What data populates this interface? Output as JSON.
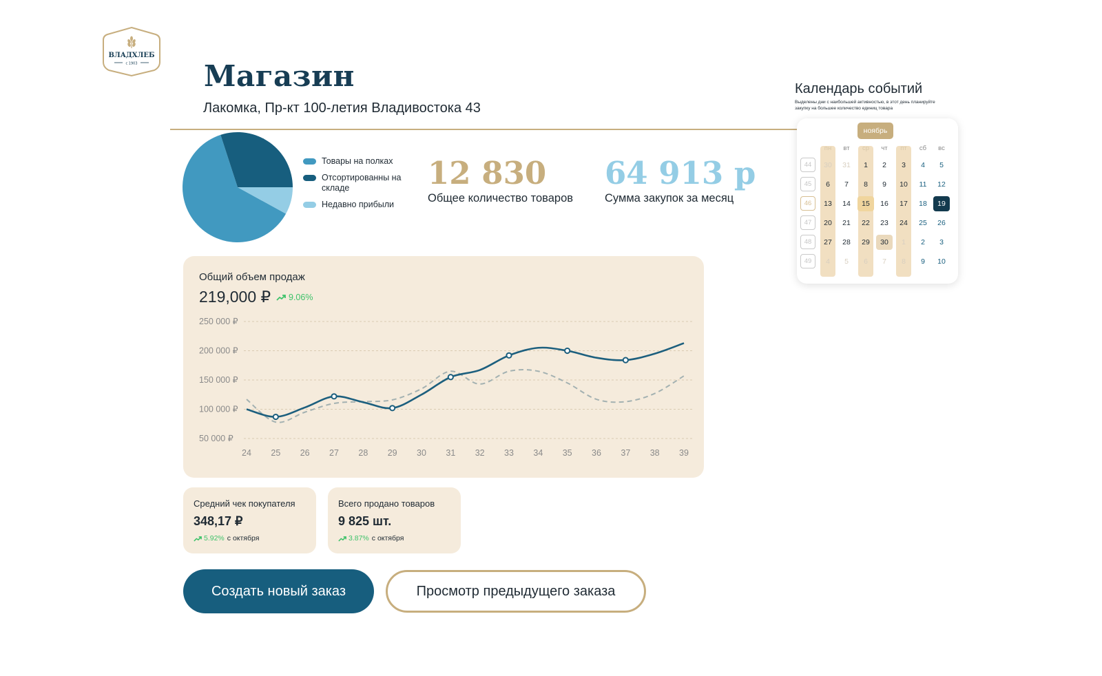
{
  "brand": {
    "logo_text": "ВЛАДХЛЕБ",
    "logo_since": "с 1903"
  },
  "header": {
    "title": "Магазин",
    "subtitle": "Лакомка, Пр-кт 100-летия Владивостока 43"
  },
  "inventory": {
    "legend": [
      {
        "label": "Товары на полках",
        "color": "#4199c0"
      },
      {
        "label": "Отсортированны на складе",
        "color": "#175e7e"
      },
      {
        "label": "Недавно прибыли",
        "color": "#94cde5"
      }
    ],
    "pie_shares": [
      0.62,
      0.3,
      0.08
    ]
  },
  "stats": {
    "total_items": {
      "value": "12 830",
      "label": "Общее количество товаров",
      "color": "#c7ae7e"
    },
    "monthly_purchases": {
      "value": "64 913 р",
      "label": "Сумма закупок за месяц",
      "color": "#94cde5"
    }
  },
  "sales": {
    "title": "Общий объем продаж",
    "value": "219,000 ₽",
    "trend": "9.06%"
  },
  "chart_data": {
    "type": "line",
    "x": [
      24,
      25,
      26,
      27,
      28,
      29,
      30,
      31,
      32,
      33,
      34,
      35,
      36,
      37,
      38,
      39
    ],
    "x_ticks": [
      "24",
      "25",
      "26",
      "27",
      "28",
      "29",
      "30",
      "31",
      "32",
      "33",
      "34",
      "35",
      "36",
      "37",
      "38",
      "39"
    ],
    "y_ticks": [
      "250 000 ₽",
      "200 000 ₽",
      "150 000 ₽",
      "100 000 ₽",
      "50 000 ₽"
    ],
    "y_tick_values": [
      250000,
      200000,
      150000,
      100000,
      50000
    ],
    "ylim": [
      50000,
      250000
    ],
    "grid": true,
    "series": [
      {
        "style": "solid",
        "color": "#1c5f7e",
        "values": [
          100000,
          87000,
          103000,
          122000,
          112000,
          102000,
          125000,
          155000,
          167000,
          192000,
          205000,
          200000,
          188000,
          184000,
          195000,
          213000
        ],
        "markers_at": [
          25,
          27,
          29,
          31,
          33,
          35,
          37
        ]
      },
      {
        "style": "dashed",
        "color": "#a3b1b1",
        "values": [
          117000,
          78000,
          95000,
          110000,
          113000,
          116000,
          135000,
          165000,
          143000,
          165000,
          165000,
          145000,
          117000,
          113000,
          127000,
          157000
        ]
      }
    ]
  },
  "kpis": [
    {
      "title": "Средний чек покупателя",
      "value": "348,17 ₽",
      "trend": "5.92%",
      "since": "с октября"
    },
    {
      "title": "Всего продано товаров",
      "value": "9 825 шт.",
      "trend": "3.87%",
      "since": "с октября"
    }
  ],
  "actions": {
    "create_order": "Создать новый заказ",
    "view_previous": "Просмотр предыдущего заказа"
  },
  "calendar": {
    "title": "Календарь событий",
    "description": "Выделены дни с наибольшей активностью, в этот день планируйте закупку на большее количество единиц товара",
    "month": "ноябрь",
    "weekdays": [
      "пн",
      "вт",
      "ср",
      "чт",
      "пт",
      "сб",
      "вс"
    ],
    "weeks": [
      "44",
      "45",
      "46",
      "47",
      "48",
      "49"
    ],
    "days": [
      [
        "30",
        "31",
        "1",
        "2",
        "3",
        "4",
        "5"
      ],
      [
        "6",
        "7",
        "8",
        "9",
        "10",
        "11",
        "12"
      ],
      [
        "13",
        "14",
        "15",
        "16",
        "17",
        "18",
        "19"
      ],
      [
        "20",
        "21",
        "22",
        "23",
        "24",
        "25",
        "26"
      ],
      [
        "27",
        "28",
        "29",
        "30",
        "1",
        "2",
        "3"
      ],
      [
        "4",
        "5",
        "6",
        "7",
        "8",
        "9",
        "10"
      ]
    ],
    "highlighted_weekdays": [
      "пн",
      "ср",
      "пт"
    ],
    "highlight_day": "15",
    "today": "19",
    "selected_day": "30"
  }
}
